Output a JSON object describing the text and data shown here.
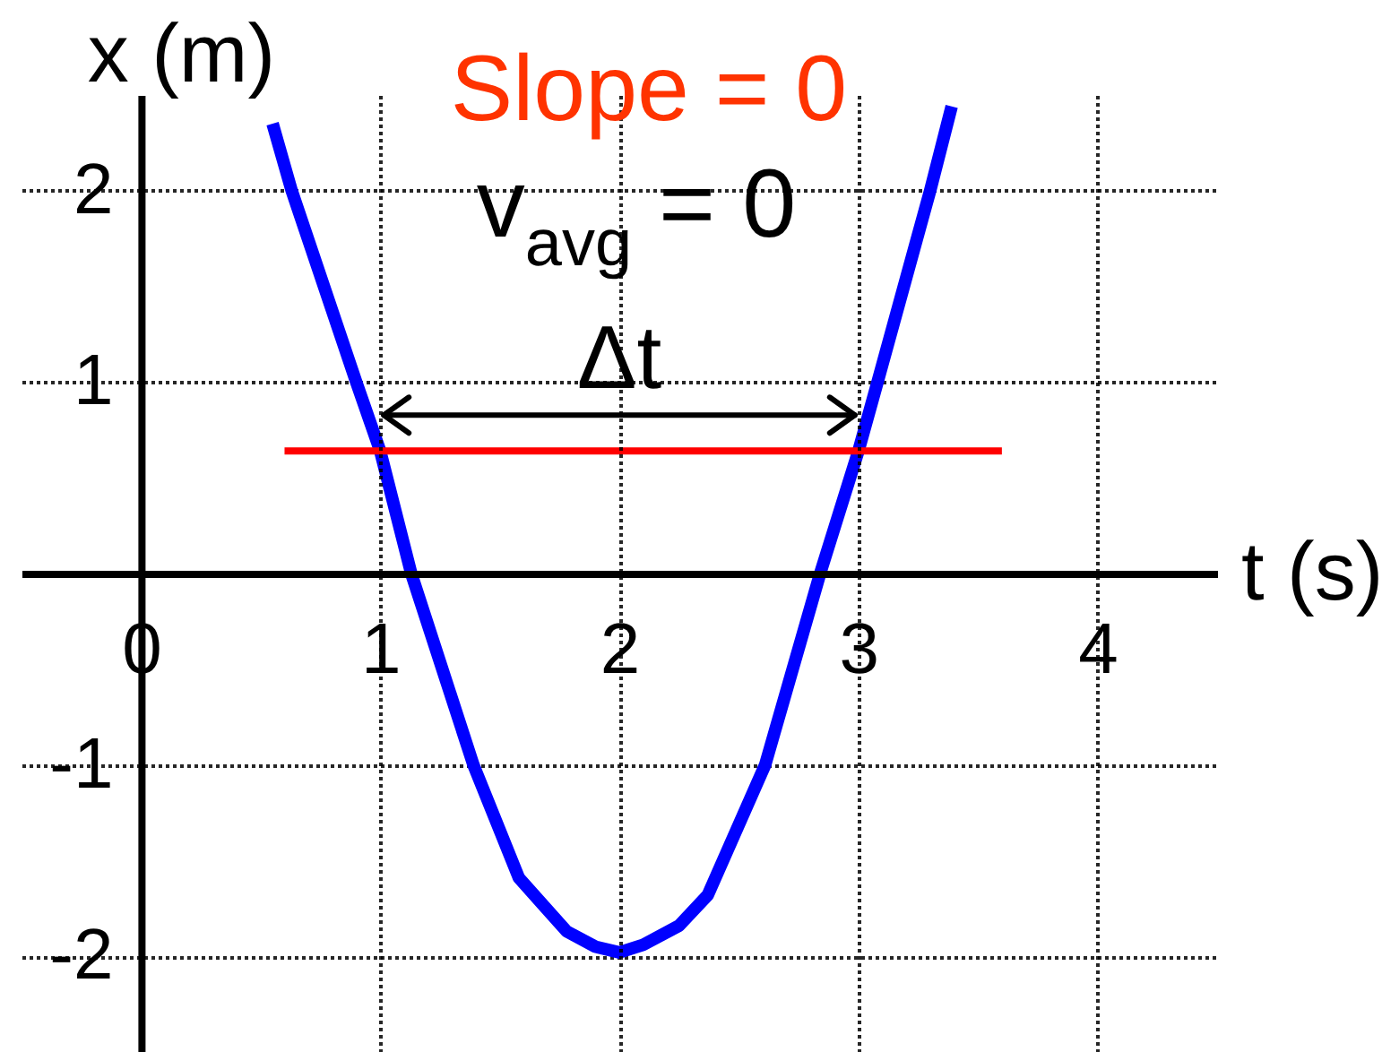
{
  "chart_data": {
    "type": "line",
    "xlabel": "t (s)",
    "ylabel": "x (m)",
    "annotations": [
      "Slope = 0",
      "v$_{avg}$ = 0",
      "Δt"
    ],
    "xlim": [
      -0.5,
      4.5
    ],
    "ylim": [
      -2.5,
      2.5
    ],
    "xticks": [
      0,
      1,
      2,
      3,
      4
    ],
    "yticks": [
      -2,
      -1,
      1,
      2
    ],
    "grid": true,
    "series": [
      {
        "color": "#0000ff",
        "x": [
          0.55,
          0.63,
          0.9,
          1.0,
          1.13,
          1.39,
          1.58,
          1.78,
          1.9,
          2.0,
          2.1,
          2.25,
          2.37,
          2.61,
          2.84,
          3.0,
          3.08,
          3.3,
          3.39
        ],
        "values": [
          2.35,
          2.0,
          1.0,
          0.64,
          0.0,
          -1.0,
          -1.59,
          -1.87,
          -1.95,
          -1.98,
          -1.94,
          -1.84,
          -1.68,
          -1.0,
          0.0,
          0.64,
          1.0,
          2.0,
          2.44
        ]
      },
      {
        "color": "#ff0000",
        "x": [
          0.6,
          3.6
        ],
        "values": [
          0.64,
          0.64
        ]
      }
    ]
  }
}
